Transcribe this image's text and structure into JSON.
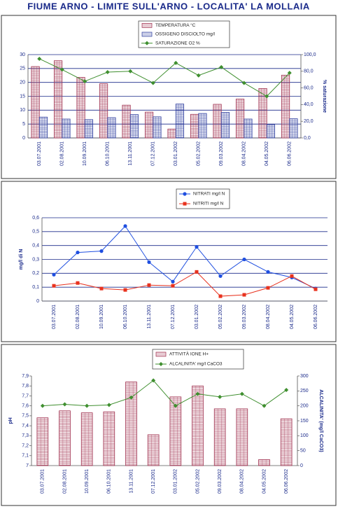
{
  "title": "FIUME ARNO - LIMITE SULL'ARNO - LOCALITA'  LA MOLLAIA",
  "chart_data": [
    {
      "type": "bar",
      "categories": [
        "03.07.2001",
        "02.08.2001",
        "10.09.2001",
        "06.10.2001",
        "13.11.2001",
        "07.12.2001",
        "03.01.2002",
        "05.02.2002",
        "09.03.2002",
        "08.04.2002",
        "04.05.2002",
        "06.06.2002"
      ],
      "series": [
        {
          "name": "TEMPERATURA  °C",
          "type": "bar",
          "color": "#a0304f",
          "values": [
            25.7,
            27.8,
            21.8,
            19.5,
            11.8,
            9.3,
            3.2,
            8.5,
            12.1,
            14.0,
            17.8,
            22.6
          ]
        },
        {
          "name": "OSSIGENO DISCIOLTO  mg/l",
          "type": "bar",
          "color": "#2f3f9f",
          "values": [
            7.5,
            6.8,
            6.6,
            7.3,
            8.4,
            7.6,
            12.2,
            8.8,
            9.2,
            6.8,
            4.8,
            6.9
          ]
        },
        {
          "name": "SATURAZIONE O2  %",
          "type": "line",
          "marker": "diamond",
          "axis": "y2",
          "color": "#3f8f2f",
          "values": [
            95,
            82,
            68,
            79,
            80,
            66,
            90,
            75,
            85,
            66,
            50,
            78
          ]
        }
      ],
      "ylim": [
        0,
        30
      ],
      "yticks": [
        0,
        5,
        10,
        15,
        20,
        25,
        30
      ],
      "y2lim": [
        0,
        100
      ],
      "y2ticks": [
        {
          "value": 0,
          "label": "0,0"
        },
        {
          "value": 20,
          "label": "20,0"
        },
        {
          "value": 40,
          "label": "40,0"
        },
        {
          "value": 60,
          "label": "60,0"
        },
        {
          "value": 80,
          "label": "80,0"
        },
        {
          "value": 100,
          "label": "100,0"
        }
      ],
      "y2label": "% saturazione",
      "grid": true,
      "legend": "top"
    },
    {
      "type": "line",
      "categories": [
        "03.07.2001",
        "02.08.2001",
        "10.09.2001",
        "06.10.2001",
        "13.11.2001",
        "07.12.2001",
        "03.01.2002",
        "05.02.2002",
        "09.03.2002",
        "08.04.2002",
        "04.05.2002",
        "06.06.2002"
      ],
      "series": [
        {
          "name": "NITRATI  mg/l N",
          "type": "line",
          "marker": "circle",
          "color": "#1f4fe0",
          "values": [
            0.19,
            0.35,
            0.36,
            0.54,
            0.28,
            0.14,
            0.39,
            0.18,
            0.3,
            0.21,
            0.17,
            0.09
          ]
        },
        {
          "name": "NITRITI  mg/l N",
          "type": "line",
          "marker": "square",
          "color": "#e8321e",
          "values": [
            0.11,
            0.13,
            0.09,
            0.08,
            0.115,
            0.11,
            0.21,
            0.035,
            0.045,
            0.095,
            0.18,
            0.085
          ]
        }
      ],
      "ylim": [
        0,
        0.6
      ],
      "yticks": [
        0,
        {
          "value": 0.1,
          "label": "0,1"
        },
        {
          "value": 0.2,
          "label": "0,2"
        },
        {
          "value": 0.3,
          "label": "0,3"
        },
        {
          "value": 0.4,
          "label": "0,4"
        },
        {
          "value": 0.5,
          "label": "0,5"
        },
        {
          "value": 0.6,
          "label": "0,6"
        }
      ],
      "ylabel": "mg/l di N",
      "grid": true,
      "legend": "top"
    },
    {
      "type": "bar",
      "categories": [
        "03.07.2001",
        "02.08.2001",
        "10.09.2001",
        "06.10.2001",
        "13.11.2001",
        "07.12.2001",
        "03.01.2002",
        "05.02.2002",
        "09.03.2002",
        "08.04.2002",
        "04.05.2002",
        "06.06.2002"
      ],
      "series": [
        {
          "name": "ATTIVITÀ IONE H+",
          "type": "bar",
          "color": "#a0304f",
          "values": [
            7.48,
            7.55,
            7.53,
            7.54,
            7.84,
            7.31,
            7.69,
            7.8,
            7.57,
            7.57,
            7.06,
            7.47
          ]
        },
        {
          "name": "ALCALINITA' mg/l CaCO3",
          "type": "line",
          "marker": "diamond",
          "axis": "y2",
          "color": "#3f8f2f",
          "values": [
            200,
            205,
            200,
            203,
            228,
            285,
            200,
            240,
            230,
            240,
            200,
            253
          ]
        }
      ],
      "ylim": [
        7,
        7.9
      ],
      "yticks": [
        7,
        {
          "value": 7.1,
          "label": "7,1"
        },
        {
          "value": 7.2,
          "label": "7,2"
        },
        {
          "value": 7.3,
          "label": "7,3"
        },
        {
          "value": 7.4,
          "label": "7,4"
        },
        {
          "value": 7.5,
          "label": "7,5"
        },
        {
          "value": 7.6,
          "label": "7,6"
        },
        {
          "value": 7.7,
          "label": "7,7"
        },
        {
          "value": 7.8,
          "label": "7,8"
        },
        {
          "value": 7.9,
          "label": "7,9"
        }
      ],
      "y2lim": [
        0,
        300
      ],
      "y2ticks": [
        0,
        50,
        100,
        150,
        200,
        250,
        300
      ],
      "ylabel": "pH",
      "y2label": "ALCALINITA' (mg/l CaCO3)",
      "grid": false,
      "legend": "top"
    }
  ]
}
